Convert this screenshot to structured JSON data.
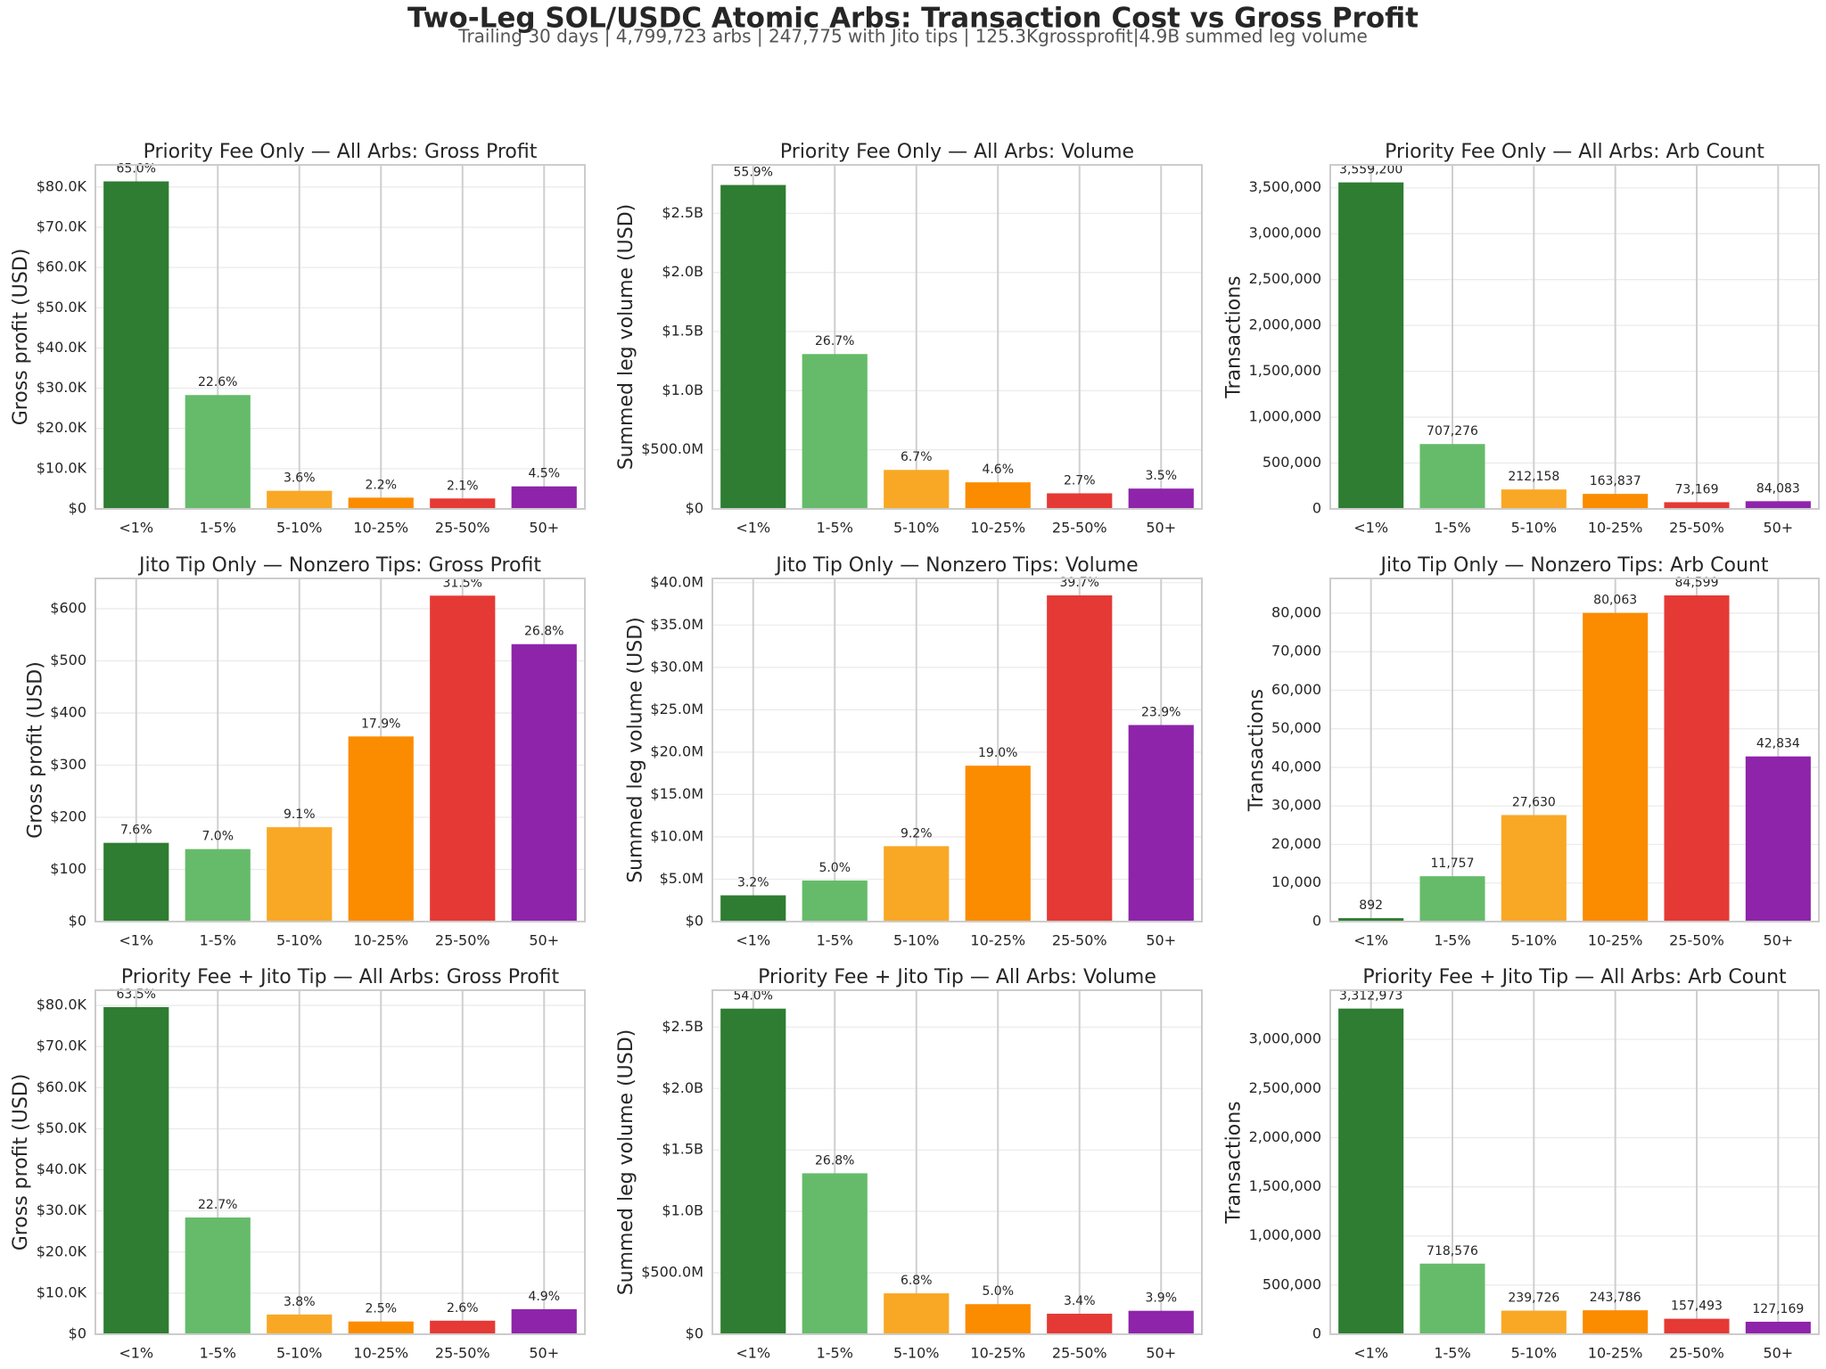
{
  "title": "Two-Leg SOL/USDC Atomic Arbs: Transaction Cost vs Gross Profit",
  "subtitle": "Trailing 30 days | 4,799,723 arbs | 247,775 with Jito tips | 125.3Kgrossprofit|4.9B summed leg volume",
  "chart_data": [
    {
      "type": "bar",
      "title": "Priority Fee Only — All Arbs: Gross Profit",
      "ylabel": "Gross profit (USD)",
      "categories": [
        "<1%",
        "1-5%",
        "5-10%",
        "10-25%",
        "25-50%",
        "50+"
      ],
      "values": [
        81400,
        28300,
        4500,
        2800,
        2600,
        5600
      ],
      "share_labels": [
        "65.0%",
        "22.6%",
        "3.6%",
        "2.2%",
        "2.1%",
        "4.5%"
      ],
      "colors": [
        "#2e7d32",
        "#66bb6a",
        "#f9a825",
        "#fb8c00",
        "#e53935",
        "#8e24aa"
      ],
      "ylim": [
        0,
        85500
      ],
      "yticks": [
        {
          "value": 0,
          "label": "$0"
        },
        {
          "value": 10000,
          "label": "$10.0K"
        },
        {
          "value": 20000,
          "label": "$20.0K"
        },
        {
          "value": 30000,
          "label": "$30.0K"
        },
        {
          "value": 40000,
          "label": "$40.0K"
        },
        {
          "value": 50000,
          "label": "$50.0K"
        },
        {
          "value": 60000,
          "label": "$60.0K"
        },
        {
          "value": 70000,
          "label": "$70.0K"
        },
        {
          "value": 80000,
          "label": "$80.0K"
        }
      ],
      "grid": true
    },
    {
      "type": "bar",
      "title": "Priority Fee Only — All Arbs: Volume",
      "ylabel": "Summed leg volume (USD)",
      "categories": [
        "<1%",
        "1-5%",
        "5-10%",
        "10-25%",
        "25-50%",
        "50+"
      ],
      "values": [
        2740000000,
        1310000000,
        330000000,
        225000000,
        132000000,
        172000000
      ],
      "share_labels": [
        "55.9%",
        "26.7%",
        "6.7%",
        "4.6%",
        "2.7%",
        "3.5%"
      ],
      "colors": [
        "#2e7d32",
        "#66bb6a",
        "#f9a825",
        "#fb8c00",
        "#e53935",
        "#8e24aa"
      ],
      "ylim": [
        0,
        2910000000
      ],
      "yticks": [
        {
          "value": 0,
          "label": "$0"
        },
        {
          "value": 500000000,
          "label": "$500.0M"
        },
        {
          "value": 1000000000,
          "label": "$1.0B"
        },
        {
          "value": 1500000000,
          "label": "$1.5B"
        },
        {
          "value": 2000000000,
          "label": "$2.0B"
        },
        {
          "value": 2500000000,
          "label": "$2.5B"
        }
      ],
      "grid": true
    },
    {
      "type": "bar",
      "title": "Priority Fee Only — All Arbs: Arb Count",
      "ylabel": "Transactions",
      "categories": [
        "<1%",
        "1-5%",
        "5-10%",
        "10-25%",
        "25-50%",
        "50+"
      ],
      "values": [
        3559200,
        707276,
        212158,
        163837,
        73169,
        84083
      ],
      "value_labels": [
        "3,559,200",
        "707,276",
        "212,158",
        "163,837",
        "73,169",
        "84,083"
      ],
      "colors": [
        "#2e7d32",
        "#66bb6a",
        "#f9a825",
        "#fb8c00",
        "#e53935",
        "#8e24aa"
      ],
      "ylim": [
        0,
        3750000
      ],
      "yticks": [
        0,
        {
          "value": 500000,
          "label": "500,000"
        },
        {
          "value": 1000000,
          "label": "1,000,000"
        },
        {
          "value": 1500000,
          "label": "1,500,000"
        },
        {
          "value": 2000000,
          "label": "2,000,000"
        },
        {
          "value": 2500000,
          "label": "2,500,000"
        },
        {
          "value": 3000000,
          "label": "3,000,000"
        },
        {
          "value": 3500000,
          "label": "3,500,000"
        }
      ],
      "grid": true
    },
    {
      "type": "bar",
      "title": "Jito Tip Only — Nonzero Tips: Gross Profit",
      "ylabel": "Gross profit (USD)",
      "categories": [
        "<1%",
        "1-5%",
        "5-10%",
        "10-25%",
        "25-50%",
        "50+"
      ],
      "values": [
        151,
        139,
        181,
        355,
        625,
        532
      ],
      "share_labels": [
        "7.6%",
        "7.0%",
        "9.1%",
        "17.9%",
        "31.5%",
        "26.8%"
      ],
      "colors": [
        "#2e7d32",
        "#66bb6a",
        "#f9a825",
        "#fb8c00",
        "#e53935",
        "#8e24aa"
      ],
      "ylim": [
        0,
        658
      ],
      "yticks": [
        {
          "value": 0,
          "label": "$0"
        },
        {
          "value": 100,
          "label": "$100"
        },
        {
          "value": 200,
          "label": "$200"
        },
        {
          "value": 300,
          "label": "$300"
        },
        {
          "value": 400,
          "label": "$400"
        },
        {
          "value": 500,
          "label": "$500"
        },
        {
          "value": 600,
          "label": "$600"
        }
      ],
      "grid": true
    },
    {
      "type": "bar",
      "title": "Jito Tip Only — Nonzero Tips: Volume",
      "ylabel": "Summed leg volume (USD)",
      "categories": [
        "<1%",
        "1-5%",
        "5-10%",
        "10-25%",
        "25-50%",
        "50+"
      ],
      "values": [
        3100000,
        4850000,
        8900000,
        18400000,
        38500000,
        23200000
      ],
      "share_labels": [
        "3.2%",
        "5.0%",
        "9.2%",
        "19.0%",
        "39.7%",
        "23.9%"
      ],
      "colors": [
        "#2e7d32",
        "#66bb6a",
        "#f9a825",
        "#fb8c00",
        "#e53935",
        "#8e24aa"
      ],
      "ylim": [
        0,
        40500000
      ],
      "yticks": [
        {
          "value": 0,
          "label": "$0"
        },
        {
          "value": 5000000,
          "label": "$5.0M"
        },
        {
          "value": 10000000,
          "label": "$10.0M"
        },
        {
          "value": 15000000,
          "label": "$15.0M"
        },
        {
          "value": 20000000,
          "label": "$20.0M"
        },
        {
          "value": 25000000,
          "label": "$25.0M"
        },
        {
          "value": 30000000,
          "label": "$30.0M"
        },
        {
          "value": 35000000,
          "label": "$35.0M"
        },
        {
          "value": 40000000,
          "label": "$40.0M"
        }
      ],
      "grid": true
    },
    {
      "type": "bar",
      "title": "Jito Tip Only — Nonzero Tips: Arb Count",
      "ylabel": "Transactions",
      "categories": [
        "<1%",
        "1-5%",
        "5-10%",
        "10-25%",
        "25-50%",
        "50+"
      ],
      "values": [
        892,
        11757,
        27630,
        80063,
        84599,
        42834
      ],
      "value_labels": [
        "892",
        "11,757",
        "27,630",
        "80,063",
        "84,599",
        "42,834"
      ],
      "colors": [
        "#2e7d32",
        "#66bb6a",
        "#f9a825",
        "#fb8c00",
        "#e53935",
        "#8e24aa"
      ],
      "ylim": [
        0,
        89000
      ],
      "yticks": [
        0,
        {
          "value": 10000,
          "label": "10,000"
        },
        {
          "value": 20000,
          "label": "20,000"
        },
        {
          "value": 30000,
          "label": "30,000"
        },
        {
          "value": 40000,
          "label": "40,000"
        },
        {
          "value": 50000,
          "label": "50,000"
        },
        {
          "value": 60000,
          "label": "60,000"
        },
        {
          "value": 70000,
          "label": "70,000"
        },
        {
          "value": 80000,
          "label": "80,000"
        }
      ],
      "grid": true
    },
    {
      "type": "bar",
      "title": "Priority Fee + Jito Tip — All Arbs: Gross Profit",
      "ylabel": "Gross profit (USD)",
      "categories": [
        "<1%",
        "1-5%",
        "5-10%",
        "10-25%",
        "25-50%",
        "50+"
      ],
      "values": [
        79600,
        28400,
        4800,
        3100,
        3300,
        6100
      ],
      "share_labels": [
        "63.5%",
        "22.7%",
        "3.8%",
        "2.5%",
        "2.6%",
        "4.9%"
      ],
      "colors": [
        "#2e7d32",
        "#66bb6a",
        "#f9a825",
        "#fb8c00",
        "#e53935",
        "#8e24aa"
      ],
      "ylim": [
        0,
        83700
      ],
      "yticks": [
        {
          "value": 0,
          "label": "$0"
        },
        {
          "value": 10000,
          "label": "$10.0K"
        },
        {
          "value": 20000,
          "label": "$20.0K"
        },
        {
          "value": 30000,
          "label": "$30.0K"
        },
        {
          "value": 40000,
          "label": "$40.0K"
        },
        {
          "value": 50000,
          "label": "$50.0K"
        },
        {
          "value": 60000,
          "label": "$60.0K"
        },
        {
          "value": 70000,
          "label": "$70.0K"
        },
        {
          "value": 80000,
          "label": "$80.0K"
        }
      ],
      "grid": true
    },
    {
      "type": "bar",
      "title": "Priority Fee + Jito Tip — All Arbs: Volume",
      "ylabel": "Summed leg volume (USD)",
      "categories": [
        "<1%",
        "1-5%",
        "5-10%",
        "10-25%",
        "25-50%",
        "50+"
      ],
      "values": [
        2650000000,
        1310000000,
        333000000,
        245000000,
        167000000,
        191000000
      ],
      "share_labels": [
        "54.0%",
        "26.8%",
        "6.8%",
        "5.0%",
        "3.4%",
        "3.9%"
      ],
      "colors": [
        "#2e7d32",
        "#66bb6a",
        "#f9a825",
        "#fb8c00",
        "#e53935",
        "#8e24aa"
      ],
      "ylim": [
        0,
        2800000000
      ],
      "yticks": [
        {
          "value": 0,
          "label": "$0"
        },
        {
          "value": 500000000,
          "label": "$500.0M"
        },
        {
          "value": 1000000000,
          "label": "$1.0B"
        },
        {
          "value": 1500000000,
          "label": "$1.5B"
        },
        {
          "value": 2000000000,
          "label": "$2.0B"
        },
        {
          "value": 2500000000,
          "label": "$2.5B"
        }
      ],
      "grid": true
    },
    {
      "type": "bar",
      "title": "Priority Fee + Jito Tip — All Arbs: Arb Count",
      "ylabel": "Transactions",
      "categories": [
        "<1%",
        "1-5%",
        "5-10%",
        "10-25%",
        "25-50%",
        "50+"
      ],
      "values": [
        3312973,
        718576,
        239726,
        243786,
        157493,
        127169
      ],
      "value_labels": [
        "3,312,973",
        "718,576",
        "239,726",
        "243,786",
        "157,493",
        "127,169"
      ],
      "colors": [
        "#2e7d32",
        "#66bb6a",
        "#f9a825",
        "#fb8c00",
        "#e53935",
        "#8e24aa"
      ],
      "ylim": [
        0,
        3500000
      ],
      "yticks": [
        0,
        {
          "value": 500000,
          "label": "500,000"
        },
        {
          "value": 1000000,
          "label": "1,000,000"
        },
        {
          "value": 1500000,
          "label": "1,500,000"
        },
        {
          "value": 2000000,
          "label": "2,000,000"
        },
        {
          "value": 2500000,
          "label": "2,500,000"
        },
        {
          "value": 3000000,
          "label": "3,000,000"
        }
      ],
      "grid": true
    }
  ]
}
